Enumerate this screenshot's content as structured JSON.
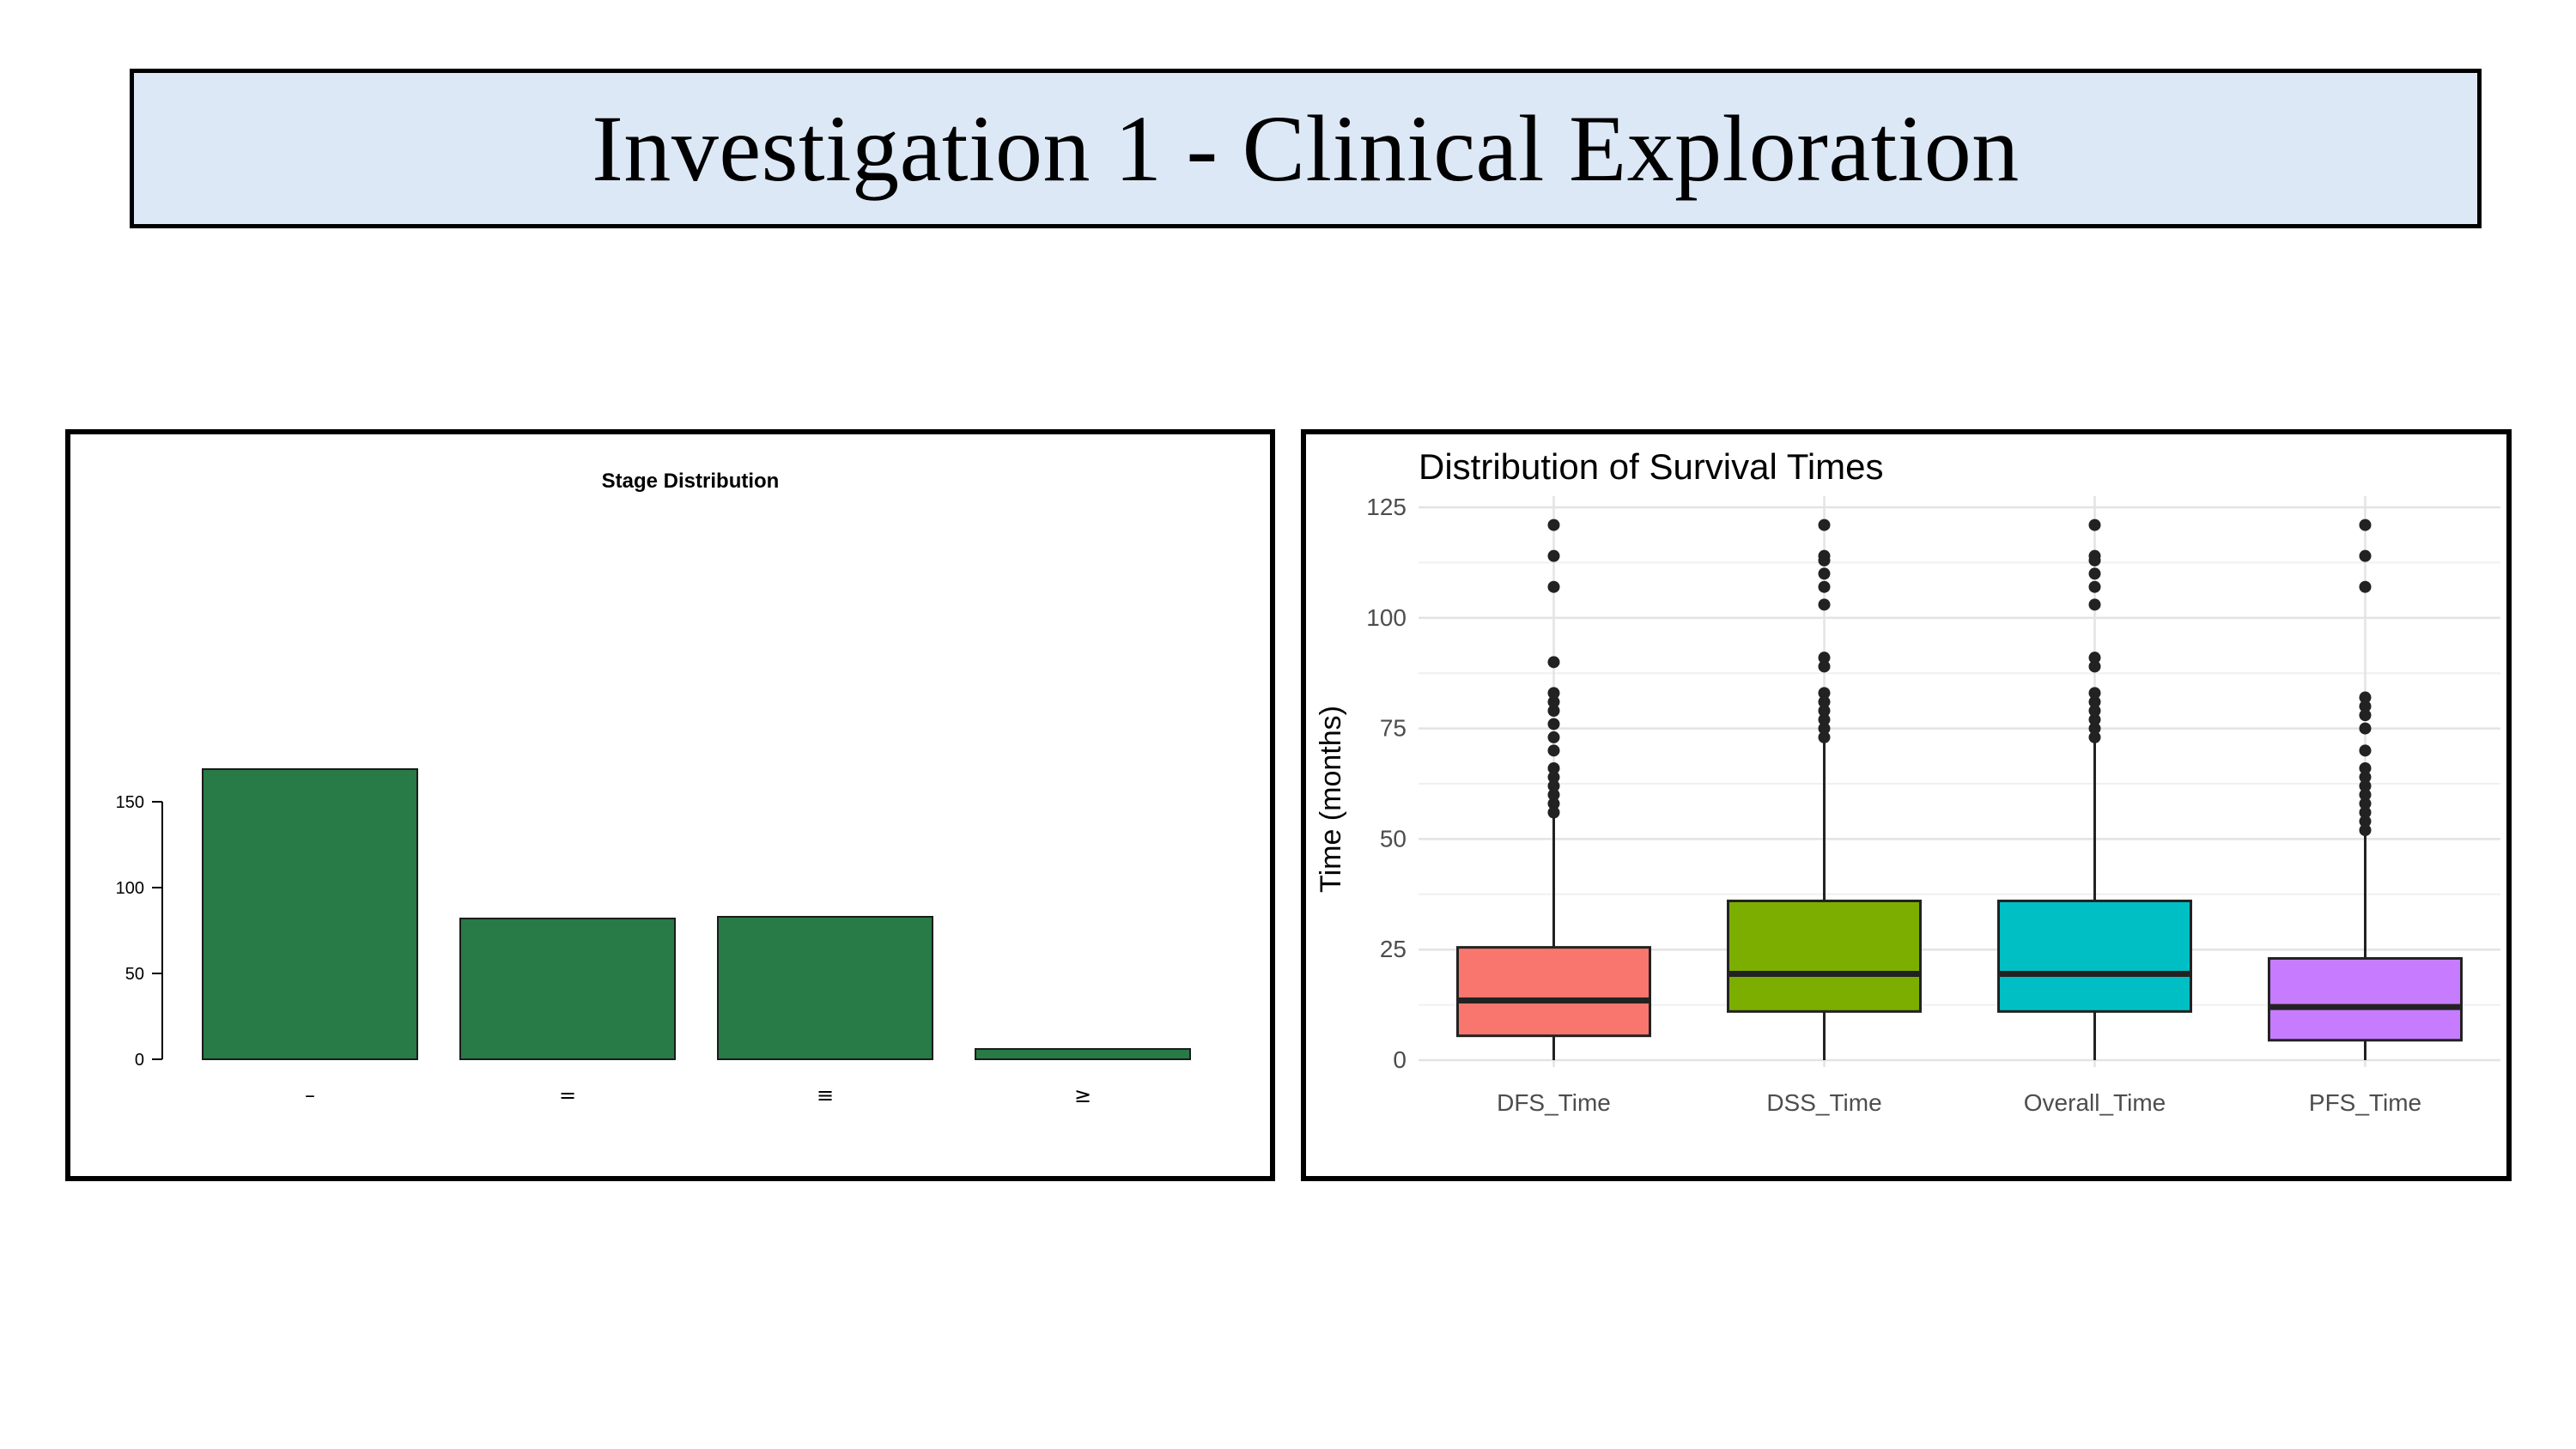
{
  "page": {
    "title": "Investigation 1 - Clinical Exploration"
  },
  "chart_data": [
    {
      "type": "bar",
      "title": "Stage Distribution",
      "xlabel": "",
      "ylabel": "",
      "categories": [
        "–",
        "=",
        "≡",
        "≥"
      ],
      "values": [
        169,
        82,
        83,
        6
      ],
      "ylim": [
        0,
        180
      ],
      "yticks": [
        0,
        50,
        100,
        150
      ],
      "grid": false,
      "bar_color": "#287a46"
    },
    {
      "type": "box",
      "title": "Distribution of Survival Times",
      "xlabel": "",
      "ylabel": "Time (months)",
      "categories": [
        "DFS_Time",
        "DSS_Time",
        "Overall_Time",
        "PFS_Time"
      ],
      "ylim": [
        0,
        125
      ],
      "yticks": [
        0,
        25,
        50,
        75,
        100,
        125
      ],
      "grid": true,
      "series": [
        {
          "category": "DFS_Time",
          "color": "#f8766d",
          "whisker_low": 0,
          "q1": 5.5,
          "median": 13.5,
          "q3": 25.5,
          "whisker_high": 55,
          "outliers": [
            56,
            58,
            60,
            62,
            64,
            66,
            70,
            73,
            76,
            79,
            81,
            83,
            90,
            107,
            114,
            121
          ]
        },
        {
          "category": "DSS_Time",
          "color": "#7cae00",
          "whisker_low": 0,
          "q1": 11,
          "median": 19.5,
          "q3": 36,
          "whisker_high": 72,
          "outliers": [
            73,
            75,
            77,
            79,
            81,
            83,
            89,
            91,
            103,
            107,
            110,
            113,
            114,
            121
          ]
        },
        {
          "category": "Overall_Time",
          "color": "#00bfc4",
          "whisker_low": 0,
          "q1": 11,
          "median": 19.5,
          "q3": 36,
          "whisker_high": 72,
          "outliers": [
            73,
            75,
            77,
            79,
            81,
            83,
            89,
            91,
            103,
            107,
            110,
            113,
            114,
            121
          ]
        },
        {
          "category": "PFS_Time",
          "color": "#c77cff",
          "whisker_low": 0,
          "q1": 4.5,
          "median": 12,
          "q3": 23,
          "whisker_high": 51,
          "outliers": [
            52,
            54,
            56,
            58,
            60,
            62,
            64,
            66,
            70,
            75,
            78,
            80,
            82,
            107,
            114,
            121
          ]
        }
      ]
    }
  ]
}
